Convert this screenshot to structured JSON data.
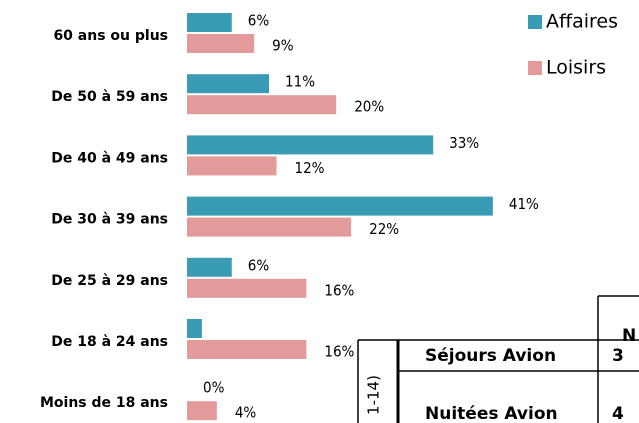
{
  "chart_data": {
    "type": "hbar",
    "categories": [
      "60 ans ou plus",
      "De 50 à 59 ans",
      "De 40 à 49 ans",
      "De 30 à 39 ans",
      "De 25 à 29 ans",
      "De 18 à 24 ans",
      "Moins de 18 ans"
    ],
    "series": [
      {
        "name": "Affaires",
        "color": "#3a9bb5",
        "values": [
          6,
          11,
          33,
          41,
          6,
          2,
          0
        ],
        "value_labels": [
          "6%",
          "11%",
          "33%",
          "41%",
          "6%",
          null,
          "0%"
        ]
      },
      {
        "name": "Loisirs",
        "color": "#e39a9a",
        "values": [
          9,
          20,
          12,
          22,
          16,
          16,
          4
        ],
        "value_labels": [
          "9%",
          "20%",
          "12%",
          "22%",
          "16%",
          "16%",
          "4%"
        ]
      }
    ],
    "legend": "top-right"
  },
  "table": {
    "side_label": "1-14)",
    "header": "N",
    "rows": [
      [
        "Séjours Avion",
        "3"
      ],
      [
        "Nuitées Avion",
        "4"
      ]
    ]
  }
}
